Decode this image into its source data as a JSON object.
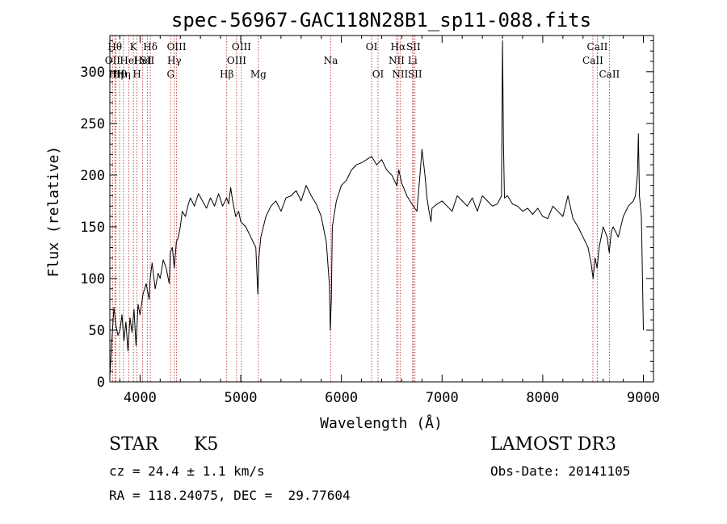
{
  "chart_data": {
    "type": "line",
    "title": "spec-56967-GAC118N28B1_sp11-088.fits",
    "xlabel": "Wavelength (Å)",
    "ylabel": "Flux (relative)",
    "xlim": [
      3700,
      9100
    ],
    "ylim": [
      0,
      335
    ],
    "xticks": [
      4000,
      5000,
      6000,
      7000,
      8000,
      9000
    ],
    "yticks": [
      0,
      50,
      100,
      150,
      200,
      250,
      300
    ],
    "grid": false,
    "line_color": "#000000",
    "marker_color": "#b22222",
    "series": [
      {
        "x": [
          3700,
          3720,
          3740,
          3760,
          3780,
          3800,
          3820,
          3840,
          3860,
          3880,
          3900,
          3920,
          3940,
          3960,
          3980,
          4000,
          4030,
          4060,
          4090,
          4100,
          4120,
          4150,
          4180,
          4200,
          4230,
          4260,
          4290,
          4300,
          4320,
          4340,
          4360,
          4380,
          4400,
          4420,
          4450,
          4480,
          4500,
          4540,
          4580,
          4620,
          4660,
          4700,
          4740,
          4780,
          4820,
          4860,
          4880,
          4900,
          4920,
          4950,
          4980,
          5000,
          5050,
          5100,
          5150,
          5170,
          5180,
          5200,
          5250,
          5300,
          5350,
          5400,
          5450,
          5500,
          5550,
          5600,
          5650,
          5700,
          5750,
          5800,
          5850,
          5880,
          5890,
          5900,
          5910,
          5950,
          6000,
          6050,
          6100,
          6150,
          6200,
          6250,
          6300,
          6350,
          6400,
          6450,
          6500,
          6550,
          6570,
          6600,
          6650,
          6700,
          6750,
          6780,
          6800,
          6830,
          6850,
          6870,
          6890,
          6900,
          6950,
          7000,
          7050,
          7100,
          7150,
          7200,
          7250,
          7300,
          7350,
          7400,
          7450,
          7500,
          7550,
          7590,
          7600,
          7610,
          7620,
          7650,
          7700,
          7750,
          7800,
          7850,
          7900,
          7950,
          8000,
          8050,
          8100,
          8150,
          8200,
          8250,
          8300,
          8350,
          8400,
          8450,
          8480,
          8500,
          8520,
          8540,
          8560,
          8600,
          8640,
          8660,
          8680,
          8700,
          8750,
          8800,
          8850,
          8900,
          8920,
          8940,
          8950,
          8960,
          8980,
          9000
        ],
        "y": [
          5,
          40,
          72,
          55,
          45,
          50,
          65,
          40,
          58,
          30,
          62,
          48,
          70,
          35,
          75,
          65,
          85,
          95,
          80,
          100,
          115,
          90,
          105,
          100,
          118,
          110,
          95,
          125,
          130,
          110,
          135,
          140,
          150,
          165,
          160,
          172,
          178,
          170,
          182,
          175,
          168,
          178,
          170,
          182,
          170,
          178,
          172,
          188,
          175,
          160,
          165,
          155,
          150,
          140,
          130,
          85,
          120,
          140,
          160,
          170,
          175,
          165,
          178,
          180,
          185,
          175,
          190,
          180,
          172,
          160,
          135,
          95,
          50,
          80,
          150,
          175,
          190,
          195,
          205,
          210,
          212,
          215,
          218,
          210,
          215,
          205,
          200,
          190,
          205,
          192,
          180,
          172,
          165,
          200,
          225,
          200,
          178,
          165,
          155,
          168,
          172,
          175,
          170,
          165,
          180,
          175,
          170,
          178,
          165,
          180,
          175,
          170,
          172,
          180,
          330,
          230,
          178,
          180,
          172,
          170,
          165,
          168,
          162,
          168,
          160,
          158,
          170,
          165,
          160,
          180,
          158,
          150,
          140,
          130,
          115,
          100,
          120,
          110,
          130,
          150,
          140,
          125,
          145,
          150,
          140,
          160,
          170,
          175,
          180,
          200,
          240,
          180,
          160,
          50
        ]
      }
    ],
    "line_markers": [
      {
        "x": 3727,
        "label": "OII",
        "row": 2
      },
      {
        "x": 3750,
        "label": "Hθ",
        "row": 1
      },
      {
        "x": 3760,
        "label": "Hη",
        "row": 3
      },
      {
        "x": 3797,
        "label": "Hθ",
        "row": 3
      },
      {
        "x": 3835,
        "label": "Hη",
        "row": 3
      },
      {
        "x": 3889,
        "label": "HeI",
        "row": 2
      },
      {
        "x": 3934,
        "label": "K",
        "row": 1
      },
      {
        "x": 3970,
        "label": "H",
        "row": 3
      },
      {
        "x": 4026,
        "label": "HeI",
        "row": 2
      },
      {
        "x": 4072,
        "label": "SII",
        "row": 2
      },
      {
        "x": 4102,
        "label": "Hδ",
        "row": 1
      },
      {
        "x": 4304,
        "label": "G",
        "row": 3
      },
      {
        "x": 4340,
        "label": "Hγ",
        "row": 2
      },
      {
        "x": 4363,
        "label": "OIII",
        "row": 1
      },
      {
        "x": 4861,
        "label": "Hβ",
        "row": 3
      },
      {
        "x": 4959,
        "label": "OIII",
        "row": 2
      },
      {
        "x": 5007,
        "label": "OIII",
        "row": 1
      },
      {
        "x": 5175,
        "label": "Mg",
        "row": 3
      },
      {
        "x": 5894,
        "label": "Na",
        "row": 2
      },
      {
        "x": 6300,
        "label": "OI",
        "row": 1
      },
      {
        "x": 6364,
        "label": "OI",
        "row": 3
      },
      {
        "x": 6548,
        "label": "NII",
        "row": 2
      },
      {
        "x": 6563,
        "label": "Hα",
        "row": 1
      },
      {
        "x": 6583,
        "label": "NII",
        "row": 3
      },
      {
        "x": 6707,
        "label": "Li",
        "row": 2
      },
      {
        "x": 6716,
        "label": "SII",
        "row": 1
      },
      {
        "x": 6731,
        "label": "SII",
        "row": 3
      },
      {
        "x": 8498,
        "label": "CaII",
        "row": 2
      },
      {
        "x": 8542,
        "label": "CaII",
        "row": 1
      },
      {
        "x": 8662,
        "label": "CaII",
        "row": 3
      }
    ]
  },
  "info": {
    "class_label": "STAR",
    "subclass": "K5",
    "survey": "LAMOST DR3",
    "cz": "cz = 24.4 ± 1.1 km/s",
    "obs_date": "Obs-Date: 20141105",
    "coords": "RA = 118.24075, DEC =  29.77604"
  }
}
